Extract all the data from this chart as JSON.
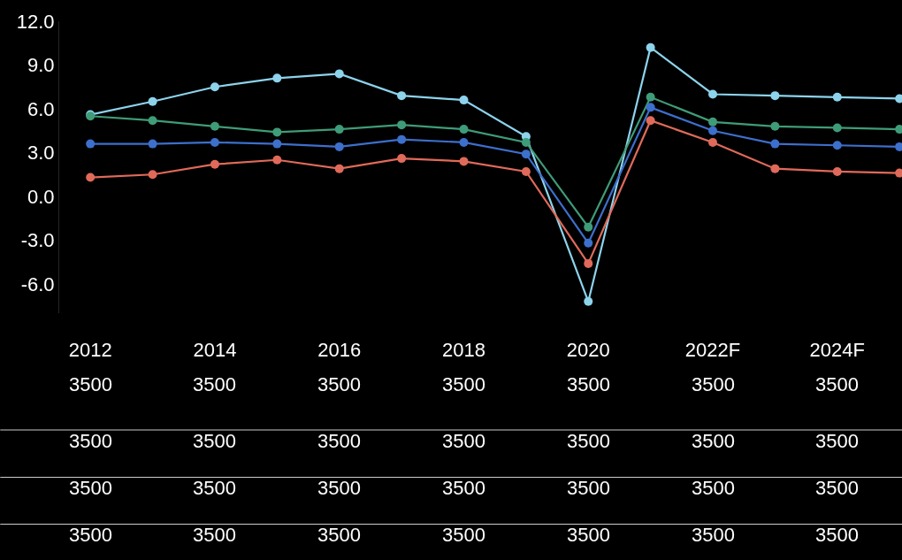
{
  "chart_data": {
    "type": "line",
    "categories": [
      "2012",
      null,
      "2014",
      null,
      "2016",
      null,
      "2018",
      null,
      "2020",
      null,
      "2022F",
      null,
      "2024F",
      null
    ],
    "series": [
      {
        "color": "#8dd3ec",
        "values": [
          5.6,
          6.5,
          7.5,
          8.1,
          8.4,
          6.9,
          6.6,
          4.1,
          -7.2,
          10.2,
          7.0,
          6.9,
          6.8,
          6.7
        ]
      },
      {
        "color": "#3f9c78",
        "values": [
          5.5,
          5.2,
          4.8,
          4.4,
          4.6,
          4.9,
          4.6,
          3.7,
          -2.1,
          6.8,
          5.1,
          4.8,
          4.7,
          4.6
        ]
      },
      {
        "color": "#3d6fcc",
        "values": [
          3.6,
          3.6,
          3.7,
          3.6,
          3.4,
          3.9,
          3.7,
          2.9,
          -3.2,
          6.1,
          4.5,
          3.6,
          3.5,
          3.4
        ]
      },
      {
        "color": "#e06a5a",
        "values": [
          1.3,
          1.5,
          2.2,
          2.5,
          1.9,
          2.6,
          2.4,
          1.7,
          -4.6,
          5.2,
          3.7,
          1.9,
          1.7,
          1.6
        ]
      }
    ],
    "ylim": [
      -8,
      12
    ],
    "yticks": [
      {
        "value": -6,
        "label": "-6.0"
      },
      {
        "value": -3,
        "label": "-3.0"
      },
      {
        "value": 0,
        "label": "0.0"
      },
      {
        "value": 3,
        "label": "3.0"
      },
      {
        "value": 6,
        "label": "6.0"
      },
      {
        "value": 9,
        "label": "9.0"
      },
      {
        "value": 12,
        "label": "12.0"
      }
    ],
    "marker": "circle",
    "line_style": "solid",
    "grid": false,
    "annotations": [
      "3500",
      "3500",
      "3500",
      "3500",
      "3500",
      "3500",
      "3500",
      "3500",
      "3500",
      "3500",
      "3500",
      "3500",
      "3500",
      "3500",
      "3500",
      "3500",
      "3500",
      "3500",
      "3500",
      "3500",
      "3500",
      "3500",
      "3500",
      "3500",
      "3500",
      "3500",
      "3500",
      "3500"
    ]
  }
}
